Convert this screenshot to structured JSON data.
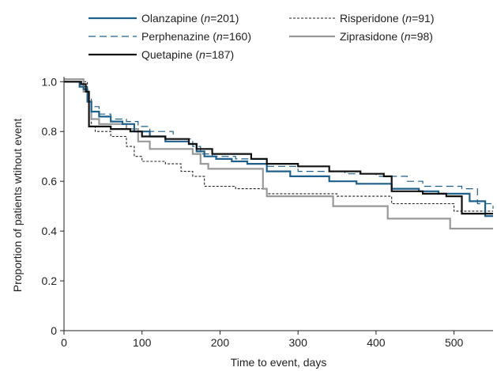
{
  "chart_data": {
    "type": "line",
    "title": "",
    "xlabel": "Time to event, days",
    "ylabel": "Proportion of patients wtihout event",
    "xlim": [
      0,
      550
    ],
    "ylim": [
      0,
      1.02
    ],
    "x_ticks": [
      0,
      100,
      200,
      300,
      400,
      500
    ],
    "y_ticks": [
      0,
      0.2,
      0.4,
      0.6,
      0.8,
      1.0
    ],
    "x_tick_labels": [
      "0",
      "100",
      "200",
      "300",
      "400",
      "500"
    ],
    "y_tick_labels": [
      "0",
      "0.2",
      "0.4",
      "0.6",
      "0.8",
      "1.0"
    ],
    "grid": false,
    "legend_position": "top",
    "series": [
      {
        "name": "Olanzapine",
        "n_label": "n",
        "n_value": "=201",
        "color": "#1f5f8b",
        "style": "solid",
        "width": 2.2,
        "points": [
          [
            0,
            1.0
          ],
          [
            15,
            1.0
          ],
          [
            20,
            0.98
          ],
          [
            25,
            0.97
          ],
          [
            30,
            0.92
          ],
          [
            35,
            0.88
          ],
          [
            45,
            0.86
          ],
          [
            60,
            0.84
          ],
          [
            75,
            0.83
          ],
          [
            90,
            0.8
          ],
          [
            110,
            0.78
          ],
          [
            130,
            0.76
          ],
          [
            160,
            0.75
          ],
          [
            170,
            0.72
          ],
          [
            180,
            0.7
          ],
          [
            195,
            0.69
          ],
          [
            215,
            0.68
          ],
          [
            235,
            0.67
          ],
          [
            260,
            0.64
          ],
          [
            290,
            0.62
          ],
          [
            340,
            0.6
          ],
          [
            375,
            0.59
          ],
          [
            420,
            0.57
          ],
          [
            455,
            0.56
          ],
          [
            480,
            0.55
          ],
          [
            520,
            0.52
          ],
          [
            540,
            0.46
          ],
          [
            550,
            0.46
          ]
        ]
      },
      {
        "name": "Perphenazine",
        "n_label": "n",
        "n_value": "=160",
        "color": "#1f5f8b",
        "style": "dashed",
        "width": 1.2,
        "points": [
          [
            0,
            1.0
          ],
          [
            20,
            1.0
          ],
          [
            25,
            0.98
          ],
          [
            30,
            0.93
          ],
          [
            35,
            0.9
          ],
          [
            45,
            0.87
          ],
          [
            60,
            0.85
          ],
          [
            80,
            0.84
          ],
          [
            95,
            0.82
          ],
          [
            110,
            0.8
          ],
          [
            140,
            0.77
          ],
          [
            165,
            0.74
          ],
          [
            175,
            0.71
          ],
          [
            190,
            0.7
          ],
          [
            220,
            0.69
          ],
          [
            260,
            0.66
          ],
          [
            300,
            0.64
          ],
          [
            360,
            0.63
          ],
          [
            400,
            0.62
          ],
          [
            440,
            0.6
          ],
          [
            460,
            0.58
          ],
          [
            510,
            0.57
          ],
          [
            530,
            0.51
          ],
          [
            550,
            0.49
          ]
        ]
      },
      {
        "name": "Risperidone",
        "n_label": "n",
        "n_value": "=91",
        "color": "#222222",
        "style": "dotted",
        "width": 1.1,
        "points": [
          [
            0,
            1.0
          ],
          [
            25,
            1.0
          ],
          [
            30,
            0.92
          ],
          [
            35,
            0.82
          ],
          [
            40,
            0.8
          ],
          [
            60,
            0.78
          ],
          [
            80,
            0.74
          ],
          [
            90,
            0.7
          ],
          [
            100,
            0.68
          ],
          [
            130,
            0.67
          ],
          [
            150,
            0.64
          ],
          [
            165,
            0.62
          ],
          [
            180,
            0.58
          ],
          [
            220,
            0.57
          ],
          [
            260,
            0.55
          ],
          [
            350,
            0.54
          ],
          [
            420,
            0.51
          ],
          [
            500,
            0.48
          ],
          [
            550,
            0.48
          ]
        ]
      },
      {
        "name": "Ziprasidone",
        "n_label": "n",
        "n_value": "=98",
        "color": "#999999",
        "style": "solid",
        "width": 2.2,
        "points": [
          [
            0,
            1.01
          ],
          [
            20,
            1.01
          ],
          [
            25,
            0.96
          ],
          [
            30,
            0.92
          ],
          [
            35,
            0.85
          ],
          [
            45,
            0.83
          ],
          [
            80,
            0.81
          ],
          [
            95,
            0.76
          ],
          [
            110,
            0.73
          ],
          [
            165,
            0.71
          ],
          [
            175,
            0.67
          ],
          [
            185,
            0.65
          ],
          [
            240,
            0.65
          ],
          [
            255,
            0.57
          ],
          [
            260,
            0.54
          ],
          [
            345,
            0.5
          ],
          [
            415,
            0.45
          ],
          [
            495,
            0.41
          ],
          [
            550,
            0.41
          ]
        ]
      },
      {
        "name": "Quetapine",
        "n_label": "n",
        "n_value": "=187",
        "color": "#111111",
        "style": "solid",
        "width": 2.2,
        "points": [
          [
            0,
            1.0
          ],
          [
            15,
            1.0
          ],
          [
            22,
            0.99
          ],
          [
            28,
            0.96
          ],
          [
            32,
            0.82
          ],
          [
            60,
            0.81
          ],
          [
            85,
            0.8
          ],
          [
            100,
            0.78
          ],
          [
            130,
            0.77
          ],
          [
            160,
            0.75
          ],
          [
            170,
            0.73
          ],
          [
            190,
            0.71
          ],
          [
            240,
            0.69
          ],
          [
            260,
            0.67
          ],
          [
            300,
            0.66
          ],
          [
            340,
            0.64
          ],
          [
            380,
            0.63
          ],
          [
            410,
            0.62
          ],
          [
            420,
            0.56
          ],
          [
            460,
            0.55
          ],
          [
            490,
            0.54
          ],
          [
            510,
            0.47
          ],
          [
            550,
            0.47
          ]
        ]
      }
    ]
  }
}
